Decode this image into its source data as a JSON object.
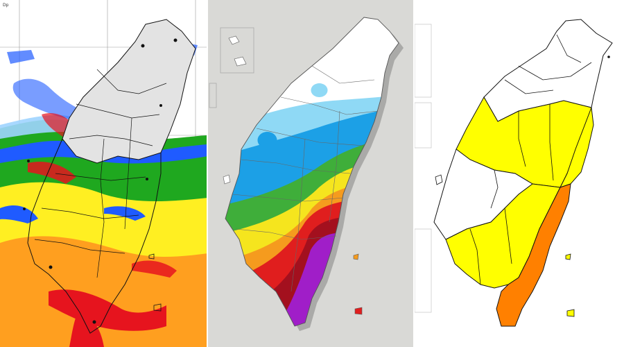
{
  "panels": [
    {
      "id": "radar",
      "label": ""
    },
    {
      "id": "rain",
      "label": ""
    },
    {
      "id": "warning",
      "label": ""
    }
  ],
  "radar": {
    "corner_text": "Dp",
    "palette": {
      "light_blue": "#9fd4ff",
      "blue": "#1f5bff",
      "green": "#1fa81f",
      "yellow": "#ffef22",
      "orange": "#ff9f1f",
      "red": "#e6141e",
      "land_gray": "#e3e3e3"
    }
  },
  "rainfall": {
    "palette": {
      "white": "#ffffff",
      "light_blue": "#8fd9f5",
      "blue": "#1ca0e6",
      "green": "#3fae3a",
      "yellow": "#f5e51e",
      "orange": "#f59b1e",
      "red": "#e01e1e",
      "dark_red": "#a3101e",
      "purple": "#a01ec8"
    }
  },
  "warning": {
    "palette": {
      "none": "#ffffff",
      "yellow": "#ffff00",
      "orange": "#ff8000"
    }
  }
}
